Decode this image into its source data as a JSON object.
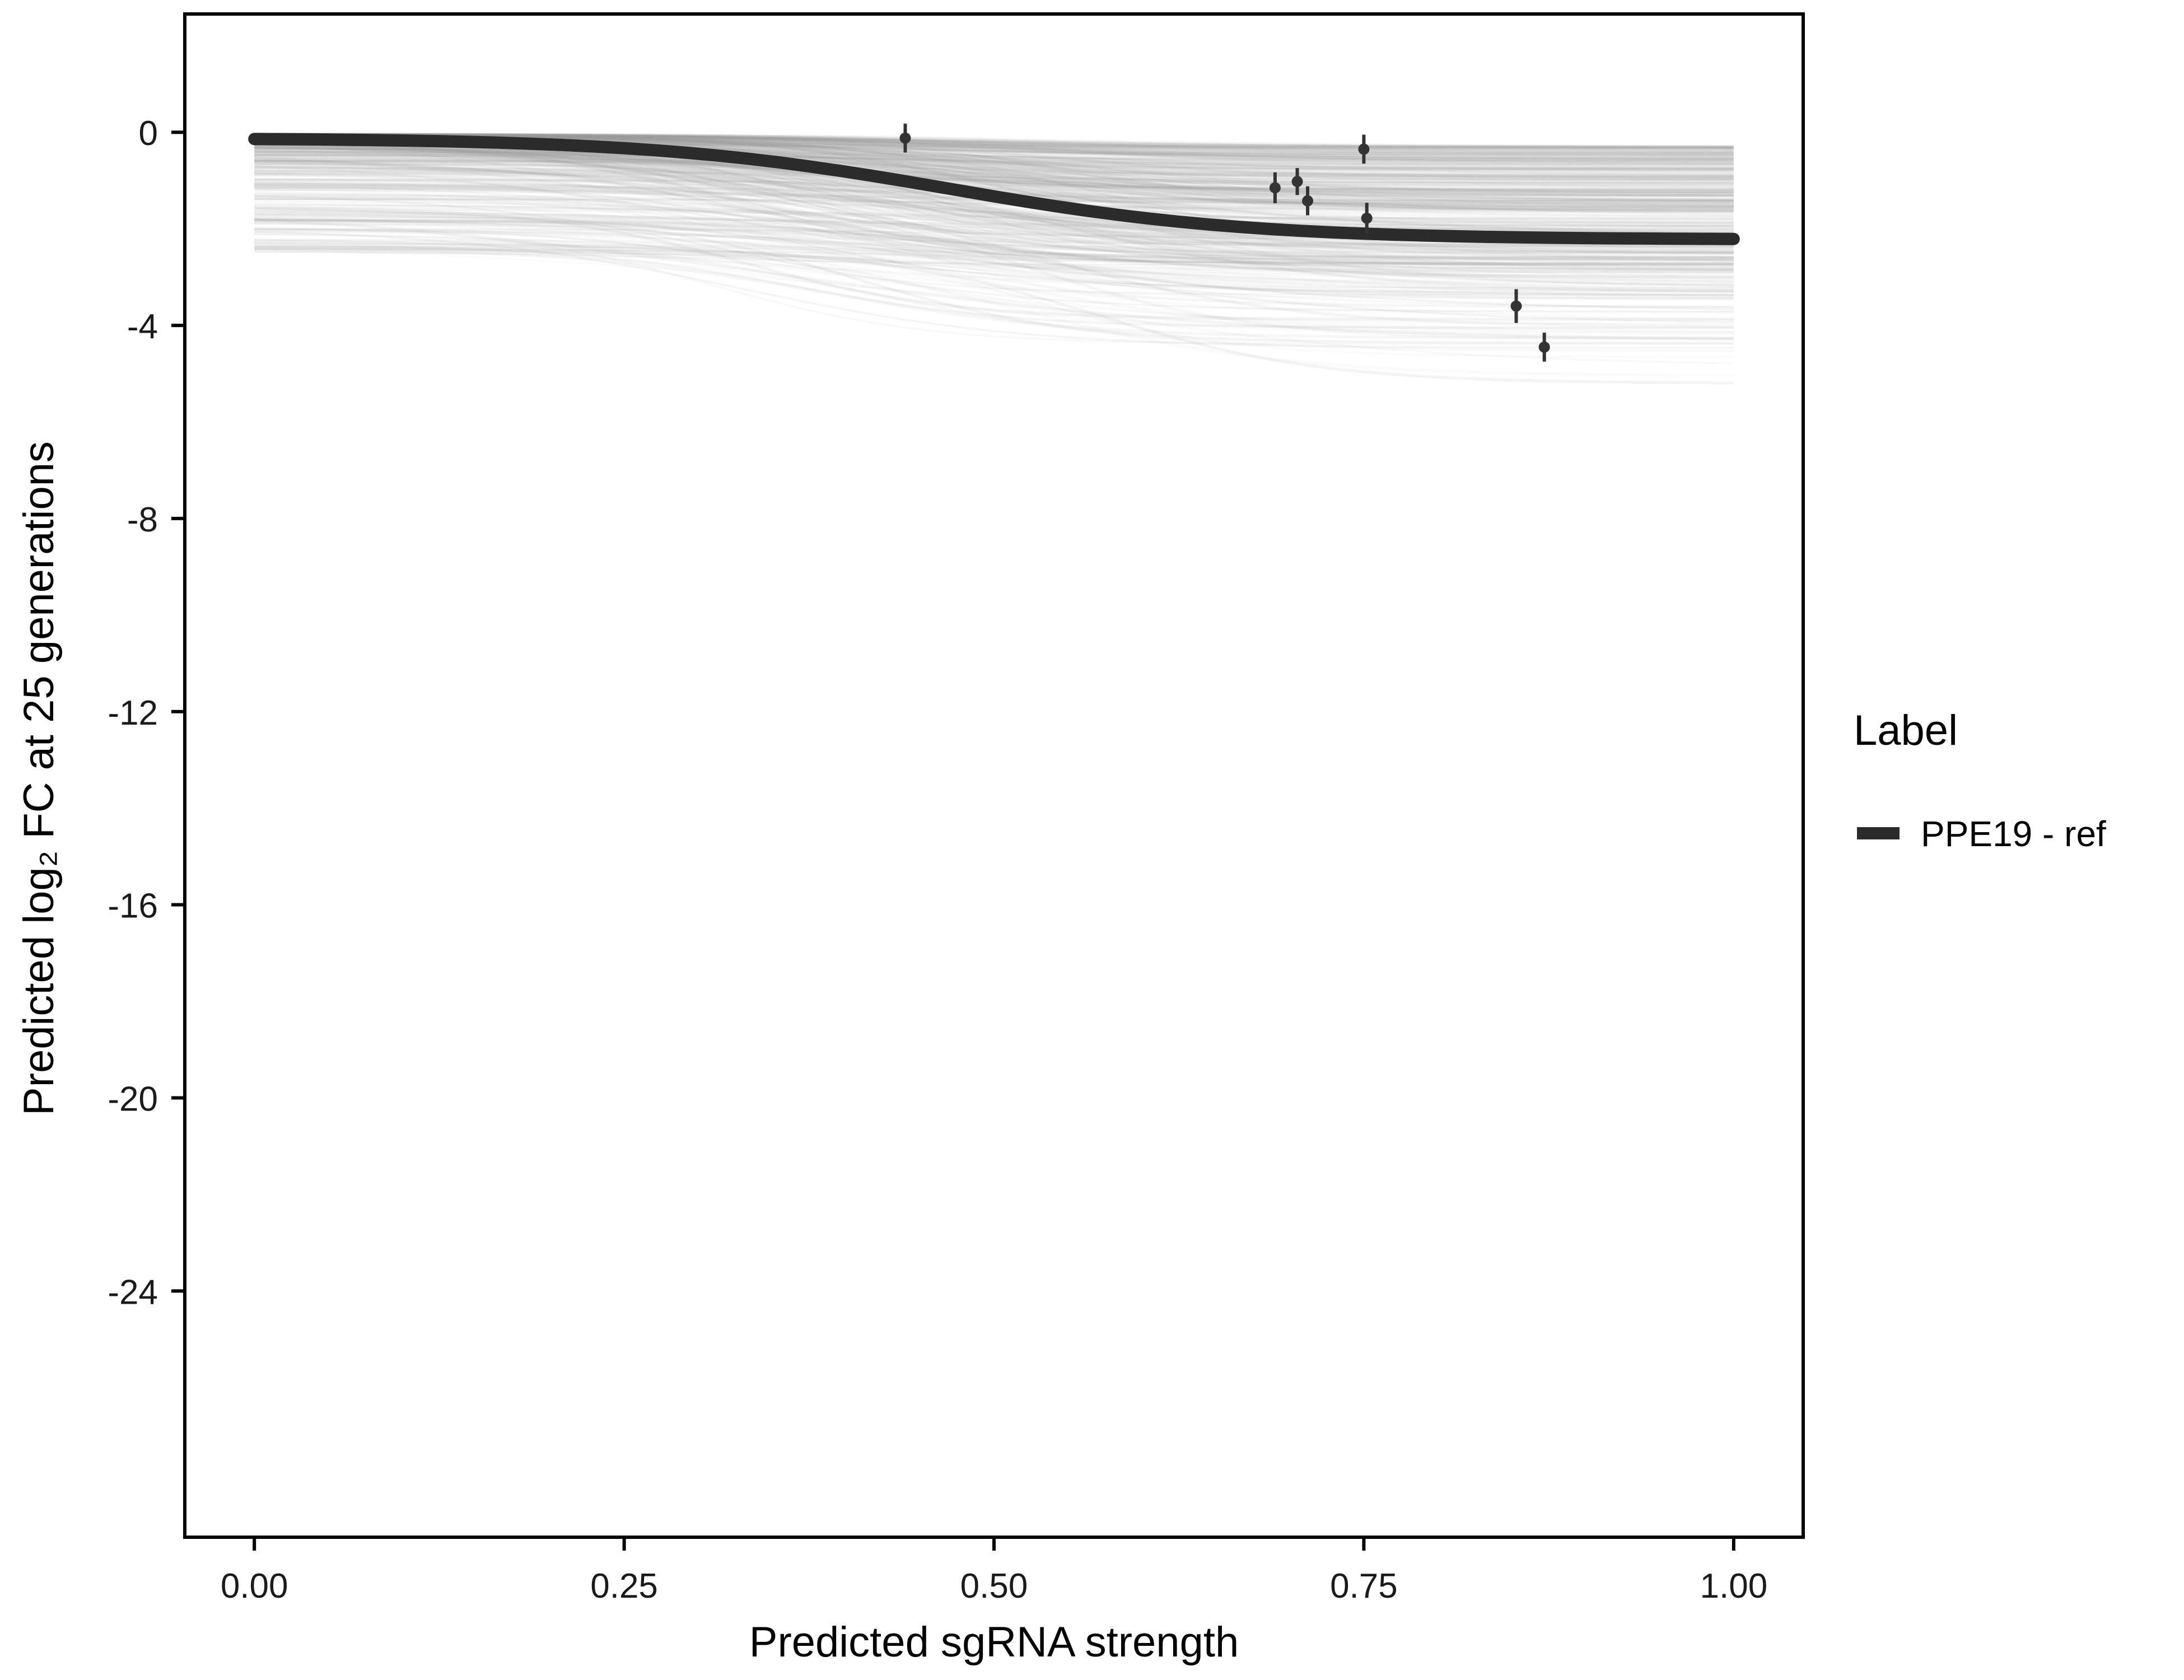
{
  "figure": {
    "background": "#ffffff"
  },
  "chart_data": {
    "type": "line",
    "title": "",
    "xlabel": "Predicted sgRNA strength",
    "ylabel": "Predicted log₂ FC at 25 generations",
    "x_range": [
      -0.047,
      1.047
    ],
    "y_range": [
      -29.1,
      2.45
    ],
    "grid": false,
    "x_ticks": {
      "values": [
        0,
        0.25,
        0.5,
        0.75,
        1
      ],
      "labels": [
        "0.00",
        "0.25",
        "0.50",
        "0.75",
        "1.00"
      ]
    },
    "y_ticks": {
      "values": [
        0,
        -4,
        -8,
        -12,
        -16,
        -20,
        -24
      ],
      "labels": [
        "0",
        "-4",
        "-8",
        "-12",
        "-16",
        "-20",
        "-24"
      ]
    },
    "legend": {
      "title": "Label",
      "position": "right",
      "entries": [
        {
          "label": "PPE19 - ref",
          "color": "#2b2b2b",
          "type": "line"
        }
      ]
    },
    "main_curve": {
      "name": "PPE19 - ref",
      "color": "#2b2b2b",
      "stroke_width": 22,
      "sigmoid": {
        "y_start": -0.12,
        "y_end": -2.22,
        "x_mid": 0.47,
        "steepness": 10
      }
    },
    "points": {
      "color": "#333333",
      "radius": 10,
      "items": [
        {
          "x": 0.44,
          "y": -0.12,
          "err": 0.3
        },
        {
          "x": 0.69,
          "y": -1.15,
          "err": 0.32
        },
        {
          "x": 0.705,
          "y": -1.02,
          "err": 0.28
        },
        {
          "x": 0.712,
          "y": -1.42,
          "err": 0.3
        },
        {
          "x": 0.75,
          "y": -0.35,
          "err": 0.3
        },
        {
          "x": 0.752,
          "y": -1.78,
          "err": 0.32
        },
        {
          "x": 0.853,
          "y": -3.6,
          "err": 0.35
        },
        {
          "x": 0.872,
          "y": -4.45,
          "err": 0.3
        }
      ]
    },
    "background_ensemble": {
      "count": 400,
      "color": "#9a9a9a",
      "seed": 42,
      "y_start_range": [
        -0.04,
        -2.5
      ],
      "y_end_min": -5.2,
      "x_mid_range": [
        0.3,
        0.58
      ],
      "opacity_range": [
        0.03,
        0.11
      ]
    }
  }
}
